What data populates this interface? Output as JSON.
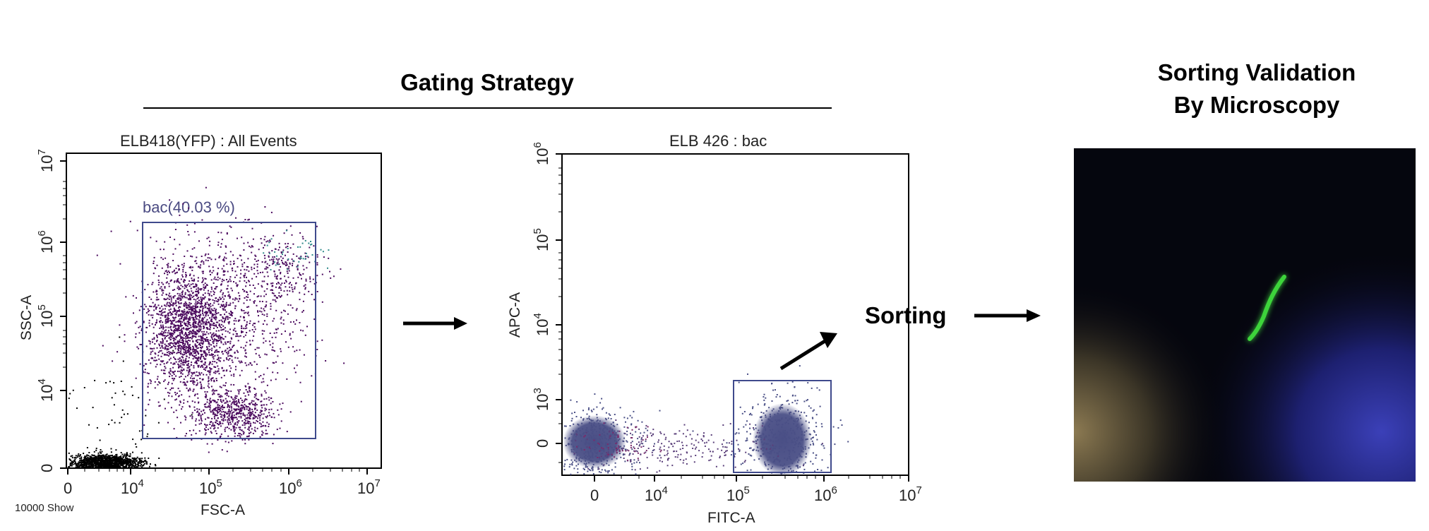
{
  "headings": {
    "gating": "Gating Strategy",
    "validation_line1": "Sorting Validation",
    "validation_line2": "By Microscopy",
    "sorting": "Sorting"
  },
  "colors": {
    "events_dark": "#4b0a5e",
    "events_black": "#000000",
    "density_blue": "#4a4f86",
    "gate": "#3f4a8c",
    "bacterium": "#3cd43a",
    "micro_background": "#05060e"
  },
  "plot1": {
    "title": "ELB418(YFP) : All Events",
    "xlabel": "FSC-A",
    "ylabel": "SSC-A",
    "footnote": "10000 Show",
    "gate_label": "bac(40.03 %)"
  },
  "plot2": {
    "title": "ELB 426 : bac",
    "xlabel": "FITC-A",
    "ylabel": "APC-A"
  },
  "chart_data": [
    {
      "type": "scatter",
      "title": "ELB418(YFP) : All Events",
      "xlabel": "FSC-A",
      "ylabel": "SSC-A",
      "x_scale": "log",
      "y_scale": "log",
      "x_ticks": [
        {
          "base": "0",
          "exp": ""
        },
        {
          "base": "10",
          "exp": "4"
        },
        {
          "base": "10",
          "exp": "5"
        },
        {
          "base": "10",
          "exp": "6"
        },
        {
          "base": "10",
          "exp": "7"
        }
      ],
      "y_ticks": [
        {
          "base": "0",
          "exp": ""
        },
        {
          "base": "10",
          "exp": "4"
        },
        {
          "base": "10",
          "exp": "5"
        },
        {
          "base": "10",
          "exp": "6"
        },
        {
          "base": "10",
          "exp": "7"
        }
      ],
      "gate": {
        "name": "bac",
        "percent": 40.03,
        "x_range": [
          15000,
          2300000
        ],
        "y_range": [
          600,
          2000000
        ]
      },
      "footnote": "10000 Show"
    },
    {
      "type": "scatter",
      "title": "ELB 426 : bac",
      "xlabel": "FITC-A",
      "ylabel": "APC-A",
      "x_scale": "log",
      "y_scale": "log",
      "x_ticks": [
        {
          "base": "0",
          "exp": ""
        },
        {
          "base": "10",
          "exp": "4"
        },
        {
          "base": "10",
          "exp": "5"
        },
        {
          "base": "10",
          "exp": "6"
        },
        {
          "base": "10",
          "exp": "7"
        }
      ],
      "y_ticks": [
        {
          "base": "0",
          "exp": ""
        },
        {
          "base": "10",
          "exp": "3"
        },
        {
          "base": "10",
          "exp": "4"
        },
        {
          "base": "10",
          "exp": "5"
        },
        {
          "base": "10",
          "exp": "6"
        }
      ],
      "gate": {
        "x_range": [
          90000,
          1300000
        ],
        "y_range": [
          -500,
          1000
        ]
      }
    }
  ]
}
